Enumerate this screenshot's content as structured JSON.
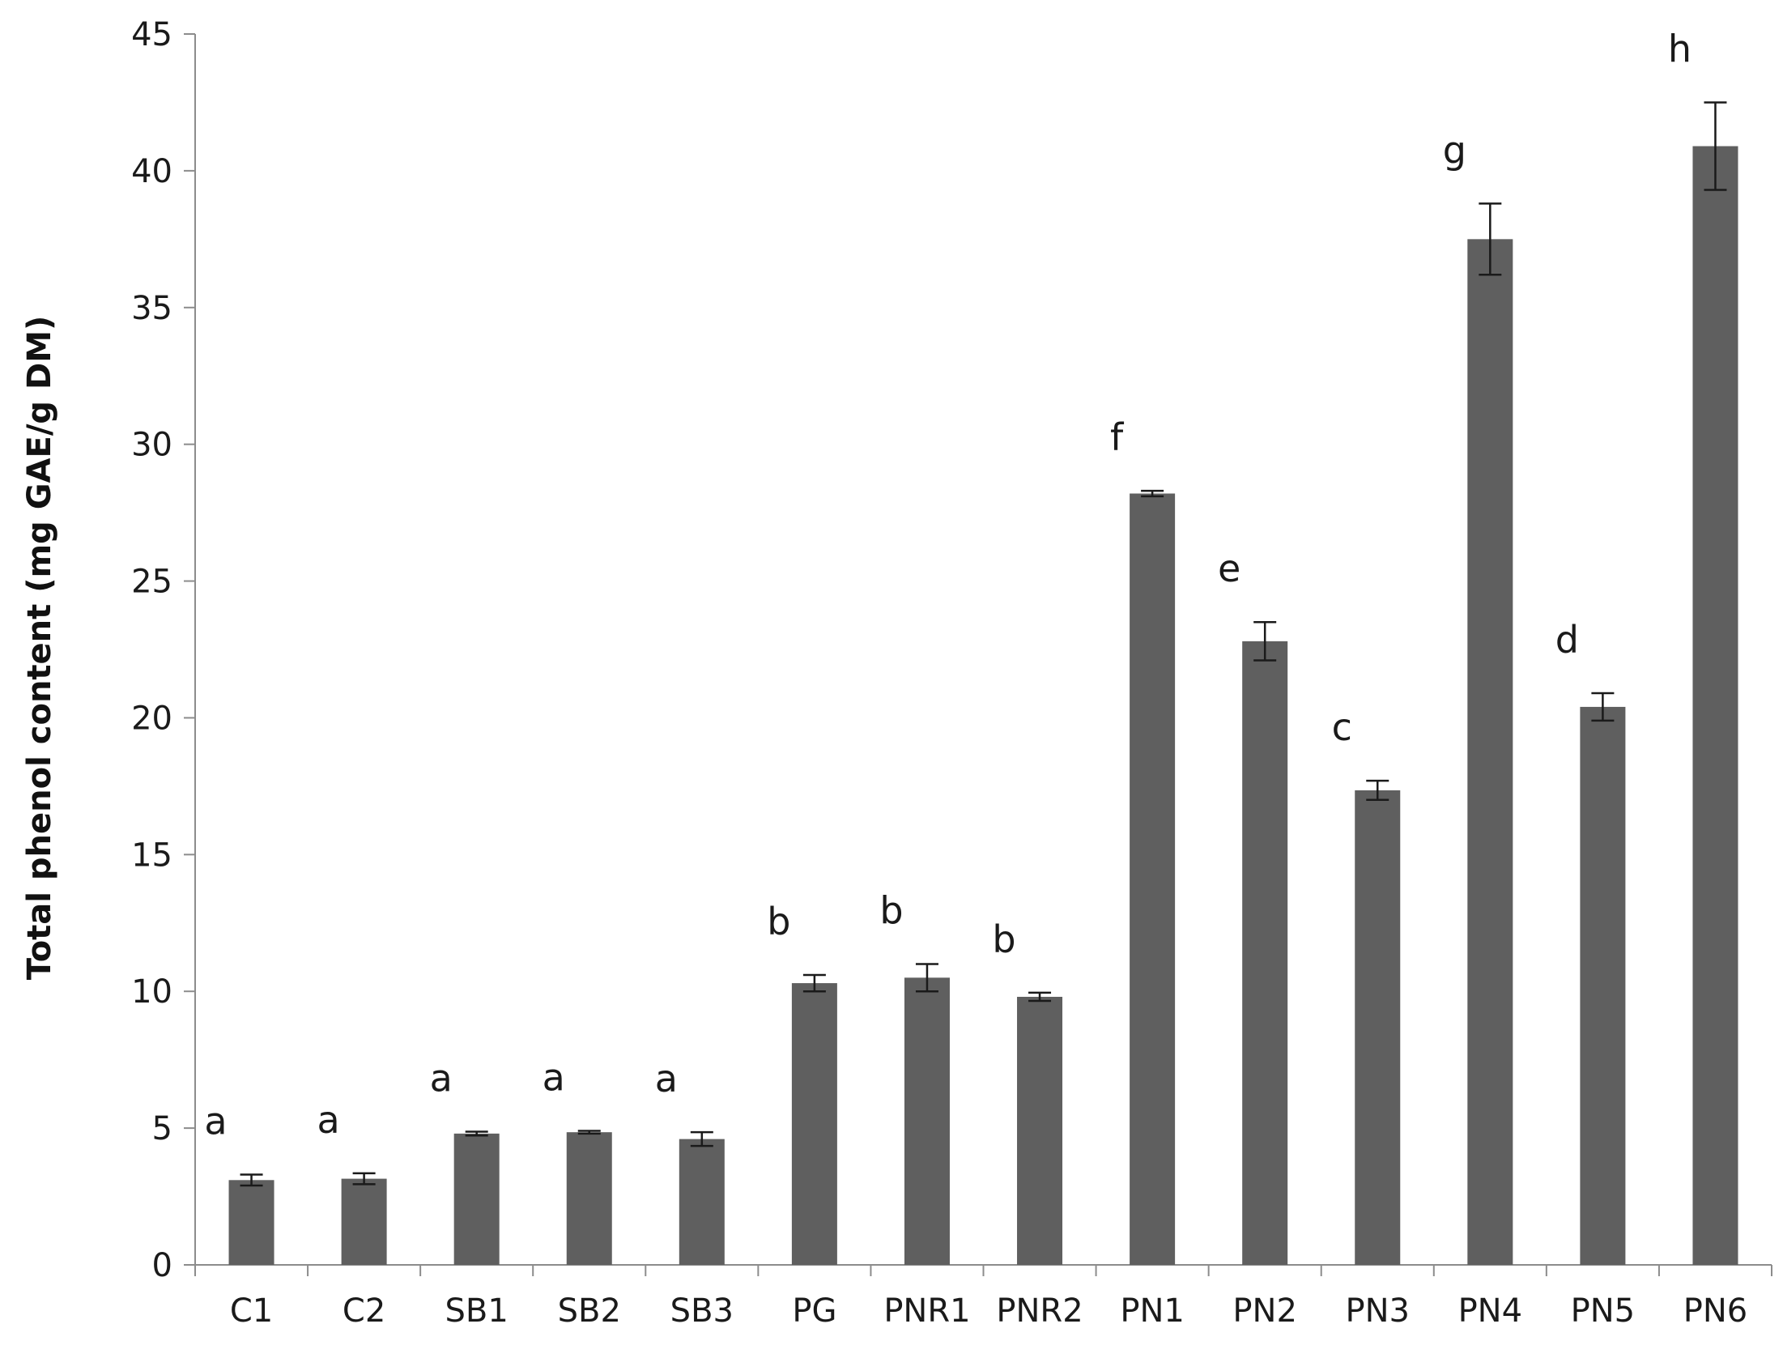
{
  "colors": {
    "bar": "#5f5f5f",
    "axis": "#8c8c8c",
    "error_bar": "#1a1a1a",
    "text": "#1a1a1a"
  },
  "chart_data": {
    "type": "bar",
    "title": "",
    "xlabel": "",
    "ylabel": "Total phenol content (mg GAE/g DM)",
    "ylim": [
      0,
      45
    ],
    "yticks": [
      0,
      5,
      10,
      15,
      20,
      25,
      30,
      35,
      40,
      45
    ],
    "grid": false,
    "legend": "none",
    "categories": [
      "C1",
      "C2",
      "SB1",
      "SB2",
      "SB3",
      "PG",
      "PNR1",
      "PNR2",
      "PN1",
      "PN2",
      "PN3",
      "PN4",
      "PN5",
      "PN6"
    ],
    "values": [
      3.1,
      3.15,
      4.8,
      4.85,
      4.6,
      10.3,
      10.5,
      9.8,
      28.2,
      22.8,
      17.35,
      37.5,
      20.4,
      40.9
    ],
    "errors": [
      0.2,
      0.2,
      0.07,
      0.05,
      0.25,
      0.3,
      0.5,
      0.15,
      0.1,
      0.7,
      0.35,
      1.3,
      0.5,
      1.6
    ],
    "significance_labels": [
      "a",
      "a",
      "a",
      "a",
      "a",
      "b",
      "b",
      "b",
      "f",
      "e",
      "c",
      "g",
      "d",
      "h"
    ]
  }
}
